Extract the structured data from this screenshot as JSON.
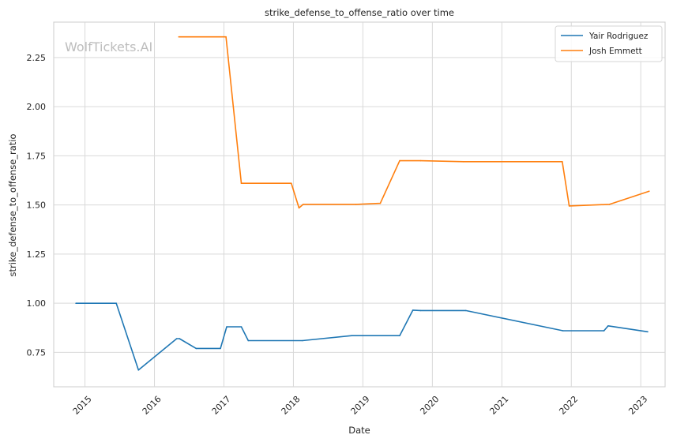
{
  "chart_data": {
    "type": "line",
    "title": "strike_defense_to_offense_ratio over time",
    "xlabel": "Date",
    "ylabel": "strike_defense_to_offense_ratio",
    "watermark": "WolfTickets.AI",
    "x_ticks": [
      "2015",
      "2016",
      "2017",
      "2018",
      "2019",
      "2020",
      "2021",
      "2022",
      "2023"
    ],
    "y_ticks": [
      "0.75",
      "1.00",
      "1.25",
      "1.50",
      "1.75",
      "2.00",
      "2.25"
    ],
    "xlim": [
      2014.55,
      2023.35
    ],
    "ylim": [
      0.575,
      2.43
    ],
    "grid": true,
    "legend_position": "top-right",
    "series": [
      {
        "name": "Yair Rodriguez",
        "color": "#1f77b4",
        "x": [
          2014.87,
          2015.45,
          2015.77,
          2016.32,
          2016.36,
          2016.6,
          2016.95,
          2017.04,
          2017.25,
          2017.35,
          2018.13,
          2018.84,
          2019.53,
          2019.72,
          2019.83,
          2020.48,
          2021.88,
          2022.47,
          2022.53,
          2023.1
        ],
        "y": [
          1.0,
          1.0,
          0.66,
          0.82,
          0.82,
          0.77,
          0.77,
          0.88,
          0.88,
          0.81,
          0.81,
          0.835,
          0.835,
          0.965,
          0.963,
          0.963,
          0.86,
          0.86,
          0.885,
          0.855
        ]
      },
      {
        "name": "Josh Emmett",
        "color": "#ff7f0e",
        "x": [
          2016.35,
          2017.03,
          2017.25,
          2017.97,
          2018.08,
          2018.14,
          2018.9,
          2019.25,
          2019.53,
          2019.83,
          2020.45,
          2021.87,
          2021.97,
          2022.55,
          2023.12
        ],
        "y": [
          2.355,
          2.355,
          1.61,
          1.61,
          1.485,
          1.503,
          1.503,
          1.508,
          1.725,
          1.725,
          1.72,
          1.72,
          1.495,
          1.503,
          1.57
        ]
      }
    ]
  }
}
